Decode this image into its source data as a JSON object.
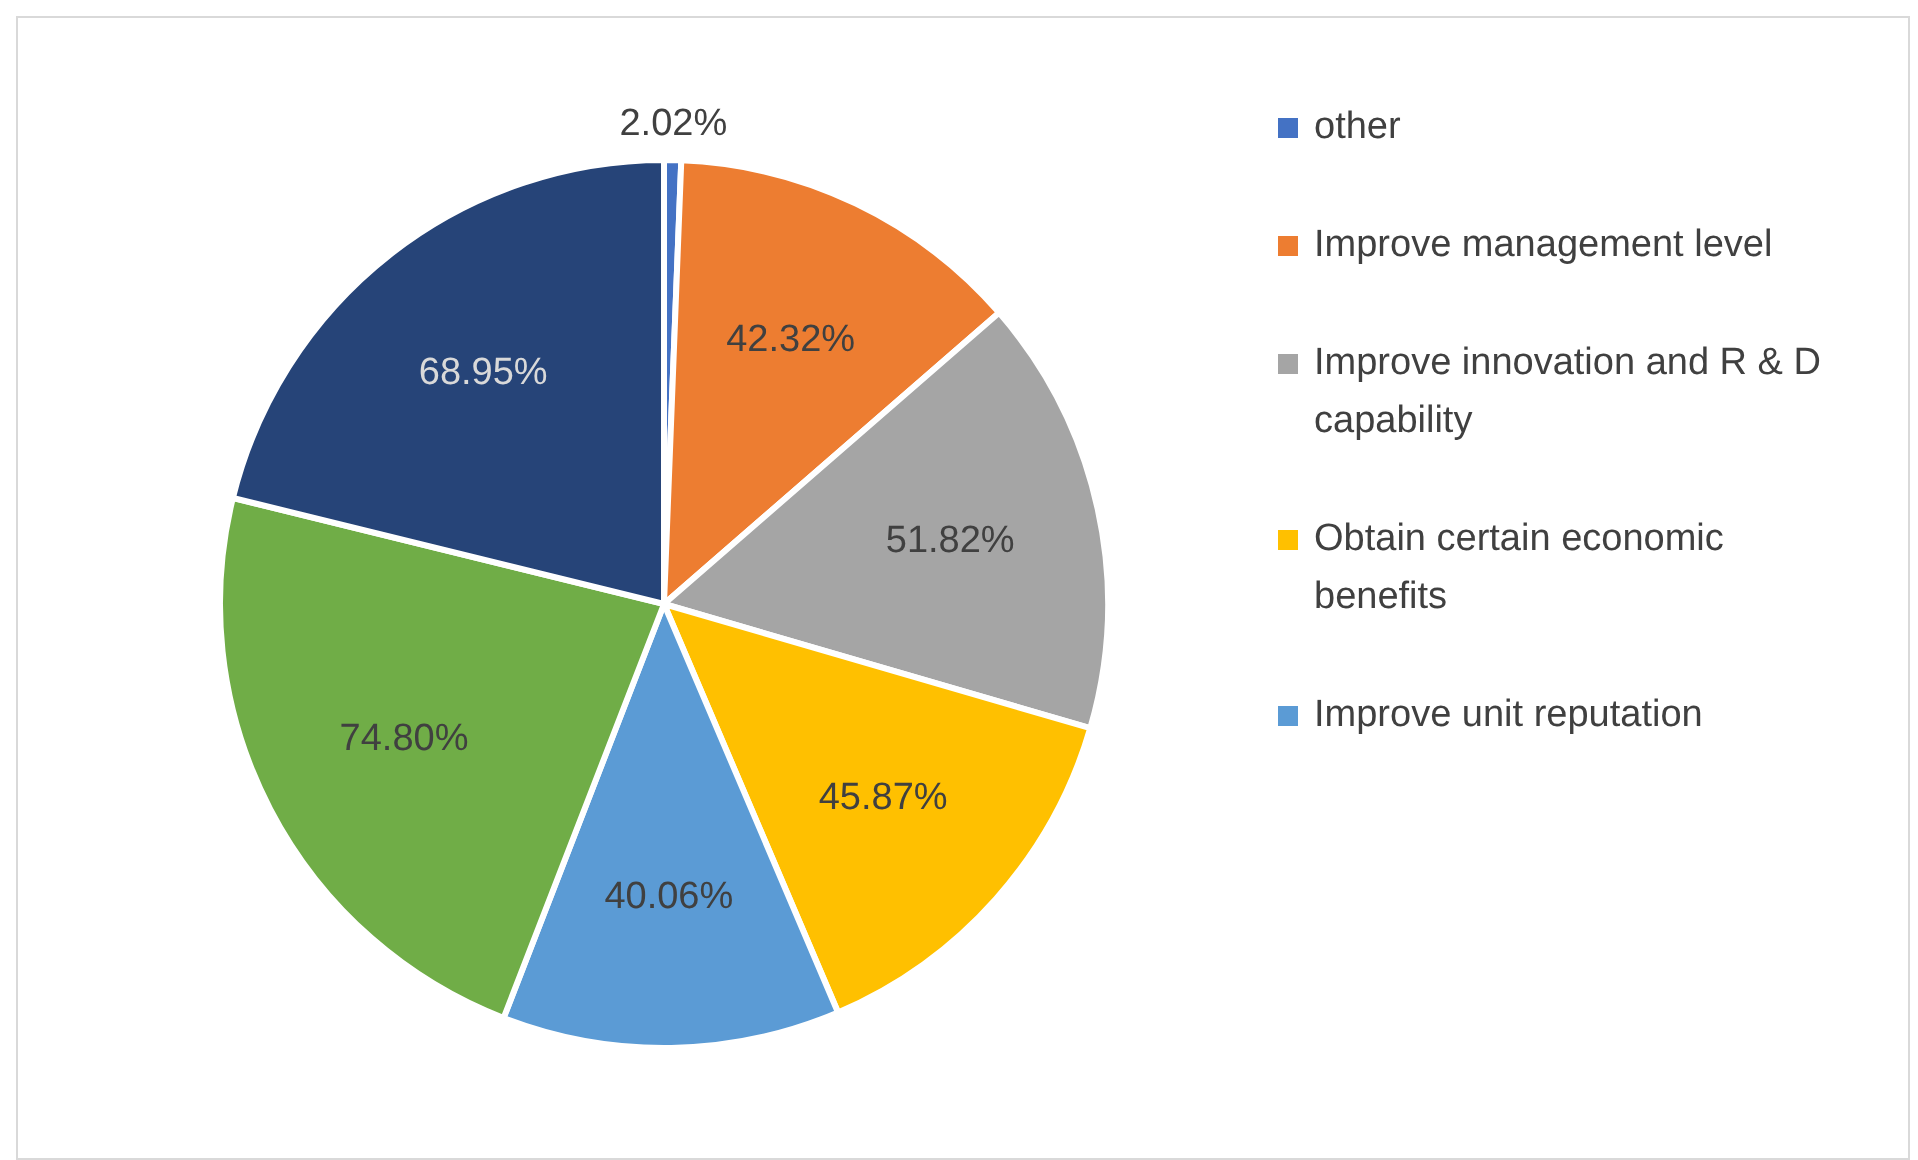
{
  "chart_data": {
    "type": "pie",
    "categories": [
      "other",
      "Improve management level",
      "Improve innovation and R & D capability",
      "Obtain certain economic benefits",
      "Improve unit reputation",
      null,
      null
    ],
    "values": [
      2.02,
      42.32,
      51.82,
      45.87,
      40.06,
      74.8,
      68.95
    ],
    "colors": [
      "#4472c4",
      "#ed7d31",
      "#a5a5a5",
      "#ffc000",
      "#5b9bd5",
      "#70ad47",
      "#264478"
    ],
    "value_labels": [
      "2.02%",
      "42.32%",
      "51.82%",
      "45.87%",
      "40.06%",
      "74.80%",
      "68.95%"
    ],
    "legend": "right"
  }
}
